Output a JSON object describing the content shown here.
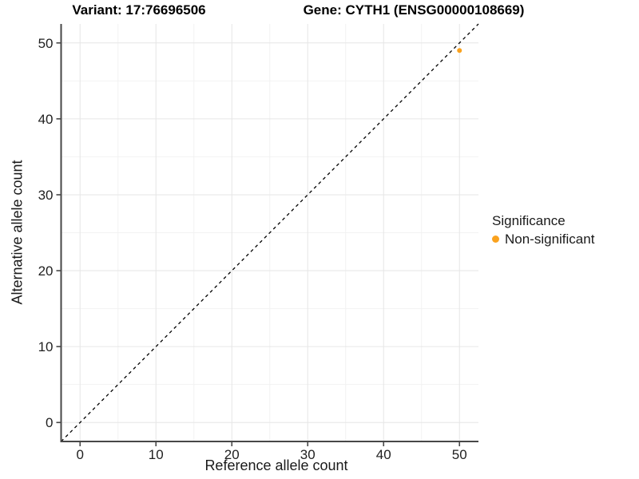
{
  "titles": {
    "variant": "Variant: 17:76696506",
    "gene": "Gene: CYTH1 (ENSG00000108669)"
  },
  "axes": {
    "x_label": "Reference allele count",
    "y_label": "Alternative allele count"
  },
  "legend": {
    "title": "Significance",
    "items": [
      {
        "label": "Non-significant",
        "color": "#FAA21E"
      }
    ]
  },
  "colors": {
    "point_orange": "#FAA21E",
    "axis_line": "#474747",
    "grid_major": "#E6E6E6",
    "grid_minor": "#F2F2F2",
    "reference_line": "#000000",
    "tick_text": "#1f1f1f",
    "background": "#FFFFFF"
  },
  "chart_data": {
    "type": "scatter",
    "title_left": "Variant: 17:76696506",
    "title_right": "Gene: CYTH1 (ENSG00000108669)",
    "xlabel": "Reference allele count",
    "ylabel": "Alternative allele count",
    "xlim": [
      -2.5,
      52.5
    ],
    "ylim": [
      -2.5,
      52.5
    ],
    "x_ticks": [
      0,
      10,
      20,
      30,
      40,
      50
    ],
    "y_ticks": [
      0,
      10,
      20,
      30,
      40,
      50
    ],
    "x_minor_ticks": [
      5,
      15,
      25,
      35,
      45
    ],
    "y_minor_ticks": [
      5,
      15,
      25,
      35,
      45
    ],
    "grid": "major+minor",
    "legend_position": "right",
    "legend_title": "Significance",
    "reference_line": {
      "kind": "identity y=x",
      "style": "dashed",
      "color": "#000000"
    },
    "series": [
      {
        "name": "Non-significant",
        "color": "#FAA21E",
        "marker": "circle",
        "points": [
          {
            "x": 50,
            "y": 49
          }
        ]
      }
    ]
  }
}
